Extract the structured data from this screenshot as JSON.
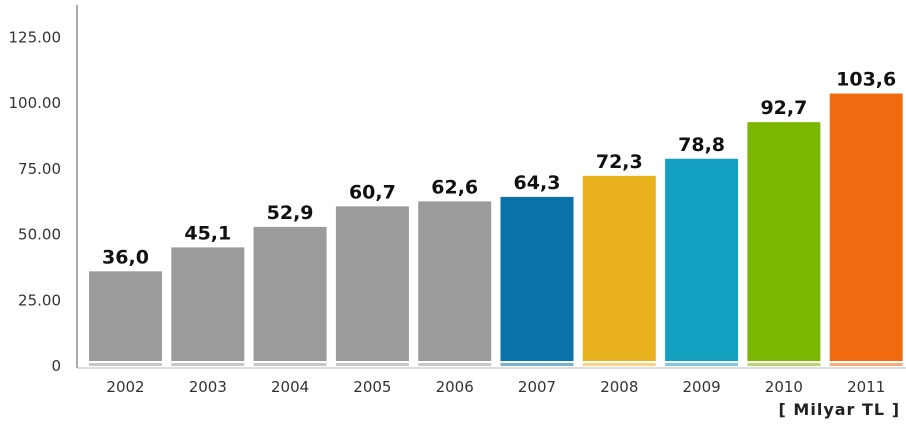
{
  "chart_data": {
    "type": "bar",
    "title": "",
    "xlabel": "",
    "ylabel": "",
    "unit_label": "[ Milyar TL ]",
    "categories": [
      "2002",
      "2003",
      "2004",
      "2005",
      "2006",
      "2007",
      "2008",
      "2009",
      "2010",
      "2011"
    ],
    "values": [
      36.0,
      45.1,
      52.9,
      60.7,
      62.6,
      64.3,
      72.3,
      78.8,
      92.7,
      103.6
    ],
    "value_labels": [
      "36,0",
      "45,1",
      "52,9",
      "60,7",
      "62,6",
      "64,3",
      "72,3",
      "78,8",
      "92,7",
      "103,6"
    ],
    "bar_colors": [
      "#9b9b9b",
      "#9b9b9b",
      "#9b9b9b",
      "#9b9b9b",
      "#9b9b9b",
      "#0a72a8",
      "#e8b11d",
      "#13a0c0",
      "#7cb700",
      "#f26a10"
    ],
    "yticks": [
      0,
      25,
      50,
      75,
      100,
      125
    ],
    "ytick_labels": [
      "0",
      "25.00",
      "50.00",
      "75.00",
      "100.00",
      "125.00"
    ],
    "ylim": [
      0,
      140
    ],
    "grid": false,
    "legend": "none"
  }
}
